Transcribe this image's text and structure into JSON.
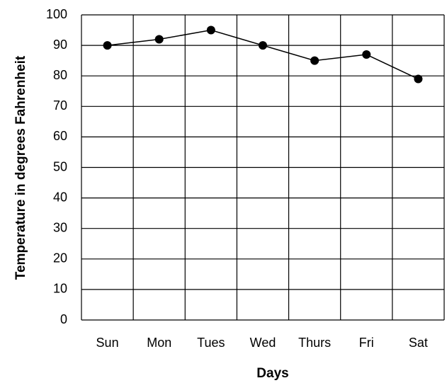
{
  "chart_data": {
    "type": "line",
    "x_label": "Days",
    "y_label": "Temperature in degrees Fahrenheit",
    "categories": [
      "Sun",
      "Mon",
      "Tues",
      "Wed",
      "Thurs",
      "Fri",
      "Sat"
    ],
    "series": [
      {
        "color": "#000000",
        "values": [
          90,
          92,
          95,
          90,
          85,
          87,
          79
        ]
      }
    ],
    "ylim": [
      0,
      100
    ],
    "yticks": [
      0,
      10,
      20,
      30,
      40,
      50,
      60,
      70,
      80,
      90,
      100
    ],
    "grid": true
  }
}
